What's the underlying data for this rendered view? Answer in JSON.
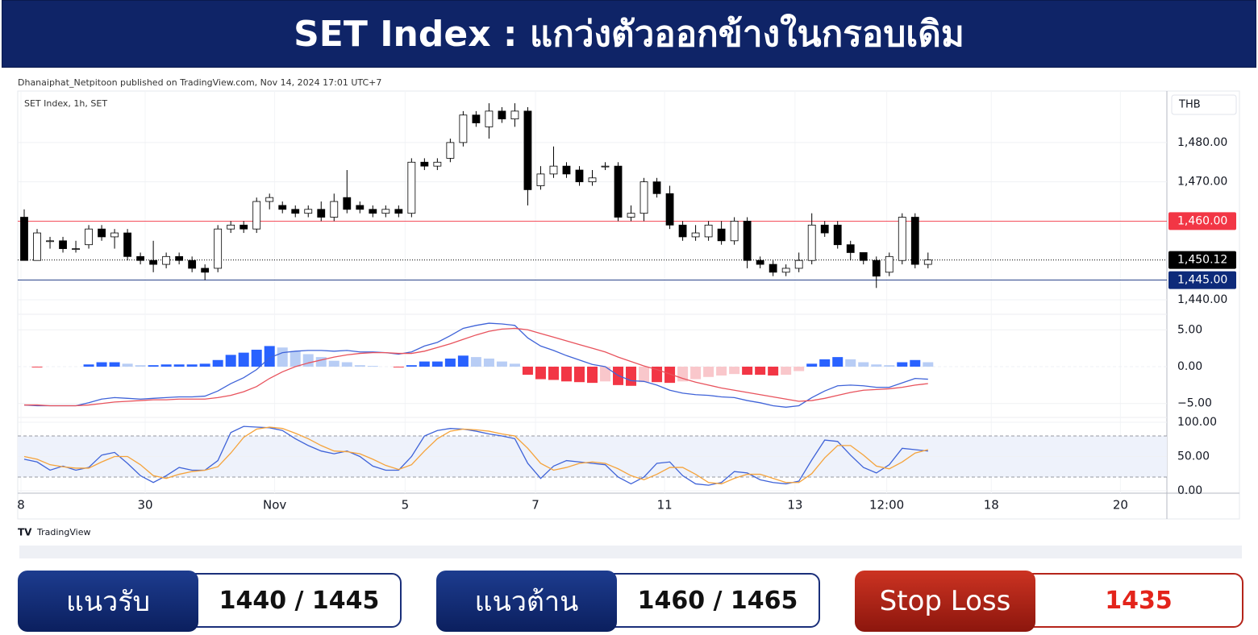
{
  "header": {
    "title": "SET Index : แกว่งตัวออกข้างในกรอบเดิม"
  },
  "publisher": "Dhanaiphat_Netpitoon published on TradingView.com, Nov 14, 2024 17:01 UTC+7",
  "symbol": "SET Index, 1h, SET",
  "currency": "THB",
  "brand": "TradingView",
  "levels": [
    {
      "label": "แนวรับ",
      "value": "1440 / 1445"
    },
    {
      "label": "แนวต้าน",
      "value": "1460 / 1465"
    },
    {
      "label": "Stop Loss",
      "value": "1435"
    }
  ],
  "chart_data": [
    {
      "type": "candlestick",
      "up_color": "#ffffff",
      "down_color": "#000000",
      "xlim": [
        -0.5,
        88.5
      ],
      "xticks": [
        {
          "value": -0.25,
          "label": "8"
        },
        {
          "value": 9.37,
          "label": "30"
        },
        {
          "value": 19.4,
          "label": "Nov"
        },
        {
          "value": 29.5,
          "label": "5"
        },
        {
          "value": 39.6,
          "label": "7"
        },
        {
          "value": 49.6,
          "label": "11"
        },
        {
          "value": 59.7,
          "label": "13"
        },
        {
          "value": 66.8,
          "label": "12:00"
        },
        {
          "value": 74.9,
          "label": "18"
        },
        {
          "value": 84.9,
          "label": "20"
        }
      ],
      "ylim": [
        1436.3,
        1493.1
      ],
      "yticks": [
        {
          "value": 1440,
          "label": "1,440.00"
        },
        {
          "value": 1470,
          "label": "1,470.00"
        },
        {
          "value": 1480,
          "label": "1,480.00"
        }
      ],
      "grid": true,
      "price_lines": [
        {
          "value": 1460,
          "label": "1,460.00",
          "color": "#f23645",
          "style": "solid"
        },
        {
          "value": 1450.12,
          "label": "1,450.12",
          "color": "#000000",
          "style": "dotted"
        },
        {
          "value": 1445,
          "label": "1,445.00",
          "color": "#0d2a7a",
          "style": "solid"
        }
      ],
      "open": [
        1461,
        1450,
        1455,
        1455,
        1453,
        1454,
        1458,
        1456,
        1457,
        1451,
        1450,
        1449,
        1451,
        1450,
        1448,
        1448,
        1458,
        1459,
        1458,
        1465,
        1464,
        1463,
        1462,
        1463,
        1461,
        1466,
        1464,
        1463,
        1462,
        1463,
        1462,
        1475,
        1474,
        1476,
        1480,
        1487,
        1484,
        1488,
        1486,
        1488,
        1469,
        1472,
        1474,
        1473,
        1470,
        1474,
        1474,
        1461,
        1462,
        1470,
        1467,
        1459,
        1456,
        1456,
        1458,
        1455,
        1460,
        1450,
        1449,
        1447,
        1448,
        1450,
        1459,
        1459,
        1454,
        1452,
        1450,
        1447,
        1450,
        1461,
        1449
      ],
      "high": [
        1463,
        1458,
        1456,
        1456,
        1455,
        1459,
        1459,
        1458,
        1458,
        1452,
        1455,
        1452,
        1452,
        1451,
        1449,
        1459,
        1460,
        1460,
        1466,
        1467,
        1465,
        1464,
        1464,
        1465,
        1467,
        1473,
        1465,
        1464,
        1464,
        1464,
        1476,
        1476,
        1476,
        1481,
        1488,
        1488,
        1490,
        1489,
        1490,
        1489,
        1474,
        1479,
        1475,
        1474,
        1473,
        1475,
        1475,
        1464,
        1471,
        1471,
        1469,
        1460,
        1459,
        1460,
        1460,
        1461,
        1461,
        1451,
        1450,
        1449,
        1452,
        1462,
        1460,
        1460,
        1455,
        1452,
        1451,
        1452,
        1462,
        1462,
        1452
      ],
      "low": [
        1450,
        1450,
        1453,
        1452,
        1452,
        1453,
        1455,
        1453,
        1450,
        1449,
        1447,
        1448,
        1449,
        1447,
        1445,
        1447,
        1457,
        1457,
        1457,
        1463,
        1462,
        1461,
        1461,
        1460,
        1460,
        1462,
        1462,
        1461,
        1461,
        1461,
        1461,
        1473,
        1473,
        1475,
        1479,
        1484,
        1481,
        1485,
        1484,
        1464,
        1468,
        1471,
        1471,
        1469,
        1469,
        1473,
        1460,
        1460,
        1460,
        1466,
        1458,
        1455,
        1455,
        1455,
        1454,
        1454,
        1448,
        1448,
        1446,
        1446,
        1447,
        1449,
        1456,
        1453,
        1450,
        1449,
        1443,
        1446,
        1449,
        1448,
        1448
      ],
      "close": [
        1450,
        1457,
        1455,
        1453,
        1453,
        1458,
        1456,
        1457,
        1451,
        1450,
        1449,
        1451,
        1450,
        1448,
        1447,
        1458,
        1459,
        1458,
        1465,
        1466,
        1463,
        1462,
        1463,
        1461,
        1465,
        1463,
        1463,
        1462,
        1463,
        1462,
        1475,
        1474,
        1475,
        1480,
        1487,
        1485,
        1488,
        1486,
        1488,
        1468,
        1472,
        1474,
        1472,
        1470,
        1471,
        1474,
        1461,
        1462,
        1470,
        1467,
        1459,
        1456,
        1457,
        1459,
        1455,
        1460,
        1450,
        1449,
        1447,
        1448,
        1450,
        1459,
        1457,
        1454,
        1452,
        1450,
        1446,
        1451,
        1461,
        1449,
        1450.12
      ]
    },
    {
      "type": "macd",
      "ylim": [
        -6.89,
        7.11
      ],
      "yticks": [
        {
          "value": 5,
          "label": "5.00"
        },
        {
          "value": 0,
          "label": "0.00"
        },
        {
          "value": -5,
          "label": "−5.00"
        }
      ],
      "histogram": {
        "colors": {
          "rising_above": "#2962ff",
          "falling_above": "#b8cdf5",
          "falling_below": "#f23645",
          "rising_below": "#f9c7cb"
        },
        "values": [
          0,
          -0.1,
          0,
          0,
          0,
          0.3,
          0.6,
          0.6,
          0.4,
          0.2,
          0.2,
          0.3,
          0.3,
          0.3,
          0.4,
          0.9,
          1.6,
          1.9,
          2.3,
          2.8,
          2.6,
          2.1,
          1.7,
          1.3,
          0.8,
          0.6,
          0.2,
          0.1,
          0,
          -0.1,
          0.2,
          0.7,
          0.7,
          1.1,
          1.5,
          1.3,
          1.1,
          0.7,
          0.4,
          -1.1,
          -1.7,
          -1.8,
          -2,
          -2.1,
          -2.2,
          -2,
          -2.5,
          -2.6,
          -2.1,
          -2.1,
          -2.2,
          -2,
          -1.7,
          -1.4,
          -1.2,
          -1,
          -1.1,
          -1.1,
          -1.2,
          -1.1,
          -0.6,
          0.4,
          1,
          1.3,
          1,
          0.6,
          0.3,
          0.2,
          0.6,
          0.9,
          0.6
        ]
      },
      "series": [
        {
          "color": "#3f63d8",
          "values": [
            -5.2,
            -5.3,
            -5.3,
            -5.3,
            -5.3,
            -4.9,
            -4.4,
            -4.2,
            -4.3,
            -4.4,
            -4.3,
            -4.2,
            -4.1,
            -4.1,
            -4,
            -3.3,
            -2.3,
            -1.5,
            -0.4,
            1.2,
            1.9,
            2.1,
            2.2,
            2.2,
            2.1,
            2.2,
            2,
            2,
            1.9,
            1.7,
            2,
            2.8,
            3.3,
            4.2,
            5.2,
            5.6,
            5.9,
            5.8,
            5.6,
            3.9,
            2.8,
            2.2,
            1.5,
            0.9,
            0.3,
            0,
            -1.2,
            -1.9,
            -2,
            -2.5,
            -3.2,
            -3.6,
            -3.8,
            -3.9,
            -4.1,
            -4.2,
            -4.6,
            -4.9,
            -5.3,
            -5.5,
            -5.3,
            -4.2,
            -3.3,
            -2.6,
            -2.5,
            -2.6,
            -2.8,
            -2.8,
            -2.2,
            -1.6,
            -1.7
          ]
        },
        {
          "color": "#e8525c",
          "values": [
            -5.2,
            -5.2,
            -5.3,
            -5.3,
            -5.3,
            -5.2,
            -5,
            -4.8,
            -4.7,
            -4.6,
            -4.5,
            -4.5,
            -4.4,
            -4.4,
            -4.4,
            -4.2,
            -3.9,
            -3.4,
            -2.7,
            -1.6,
            -0.7,
            0,
            0.5,
            0.9,
            1.3,
            1.6,
            1.8,
            1.9,
            1.9,
            1.8,
            1.8,
            2.1,
            2.6,
            3.1,
            3.7,
            4.3,
            4.8,
            5.1,
            5.2,
            5,
            4.5,
            4,
            3.5,
            3,
            2.5,
            2,
            1.3,
            0.7,
            0.1,
            -0.4,
            -1,
            -1.6,
            -2.1,
            -2.5,
            -2.9,
            -3.2,
            -3.5,
            -3.8,
            -4.1,
            -4.4,
            -4.7,
            -4.6,
            -4.3,
            -3.9,
            -3.5,
            -3.2,
            -3.1,
            -3,
            -2.8,
            -2.5,
            -2.3
          ]
        }
      ]
    },
    {
      "type": "line",
      "ylim": [
        -3.6,
        107.1
      ],
      "yticks": [
        {
          "value": 0,
          "label": "0.00"
        },
        {
          "value": 50,
          "label": "50.00"
        },
        {
          "value": 100,
          "label": "100.00"
        }
      ],
      "band": [
        20,
        80
      ],
      "band_color": "#eef2fb",
      "series": [
        {
          "color": "#3f63d8",
          "values": [
            46,
            42,
            30,
            36,
            30,
            34,
            52,
            56,
            40,
            22,
            12,
            22,
            34,
            30,
            30,
            44,
            85,
            94,
            93,
            92,
            88,
            76,
            66,
            58,
            54,
            58,
            50,
            36,
            30,
            30,
            50,
            80,
            88,
            91,
            90,
            87,
            83,
            80,
            76,
            40,
            18,
            36,
            44,
            42,
            40,
            38,
            20,
            10,
            20,
            40,
            42,
            22,
            10,
            8,
            12,
            28,
            26,
            16,
            12,
            10,
            14,
            45,
            74,
            72,
            52,
            34,
            26,
            38,
            62,
            60,
            58
          ]
        },
        {
          "color": "#f5a33b",
          "values": [
            50,
            46,
            38,
            35,
            33,
            33,
            42,
            50,
            50,
            38,
            22,
            18,
            24,
            28,
            30,
            35,
            55,
            78,
            90,
            93,
            91,
            84,
            76,
            66,
            58,
            57,
            54,
            46,
            37,
            31,
            38,
            58,
            76,
            87,
            90,
            89,
            87,
            83,
            80,
            62,
            40,
            30,
            34,
            40,
            42,
            40,
            32,
            22,
            16,
            24,
            34,
            34,
            24,
            12,
            10,
            18,
            24,
            24,
            18,
            12,
            12,
            25,
            48,
            66,
            66,
            52,
            36,
            32,
            42,
            55,
            60
          ]
        }
      ]
    }
  ]
}
